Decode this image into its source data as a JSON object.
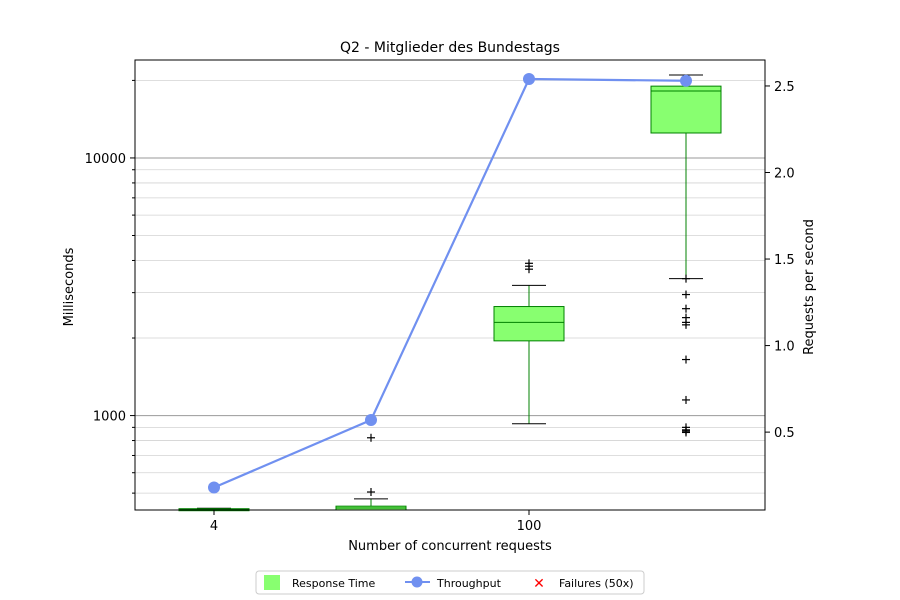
{
  "chart_data": {
    "type": "box",
    "title": "Q2 - Mitglieder des Bundestags",
    "xlabel": "Number of concurrent requests",
    "ylabel": "Milliseconds",
    "y2label": "Requests per second",
    "y_scale": "log",
    "ylim": [
      430,
      24000
    ],
    "y2lim": [
      0.05,
      2.65
    ],
    "categories": [
      "4",
      "",
      "100",
      ""
    ],
    "x_tick_labels": [
      "4",
      "100"
    ],
    "y_ticks": [
      1000,
      10000
    ],
    "y_tick_labels": [
      "1000",
      "10000"
    ],
    "y2_ticks": [
      0.5,
      1.0,
      1.5,
      2.0,
      2.5
    ],
    "y2_tick_labels": [
      "0.5",
      "1.0",
      "1.5",
      "2.0",
      "2.5"
    ],
    "response_time": [
      {
        "whisker_low": 430,
        "q1": 430,
        "median": 432,
        "q3": 435,
        "whisker_high": 437,
        "outliers": []
      },
      {
        "whisker_low": 430,
        "q1": 430,
        "median": 438,
        "q3": 445,
        "whisker_high": 475,
        "outliers": [
          505,
          820
        ]
      },
      {
        "whisker_low": 930,
        "q1": 1950,
        "median": 2300,
        "q3": 2650,
        "whisker_high": 3200,
        "outliers": [
          3700,
          3800,
          3900
        ]
      },
      {
        "whisker_low": 3400,
        "q1": 12500,
        "median": 18200,
        "q3": 19000,
        "whisker_high": 21000,
        "outliers": [
          3400,
          2950,
          2600,
          2400,
          2300,
          2250,
          1650,
          1150,
          900,
          880,
          870,
          860
        ]
      }
    ],
    "throughput": [
      0.18,
      0.57,
      2.54,
      2.53
    ],
    "legend": {
      "position": "bottom-center",
      "entries": [
        "Response Time",
        "Throughput",
        "Failures (50x)"
      ]
    },
    "grid": true,
    "colors": {
      "box_fill": "#88ff70",
      "box_edge": "#008000",
      "throughput": "#7090f0",
      "failures": "#ff0000",
      "grid_major": "#999999",
      "grid_minor": "#d3d3d3"
    }
  }
}
